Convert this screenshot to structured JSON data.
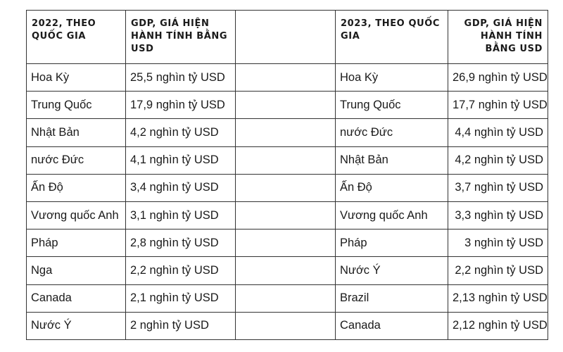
{
  "headers": {
    "col_2022_country": "2022, THEO QUỐC GIA",
    "col_2022_gdp": "GDP, GIÁ HIỆN HÀNH TÍNH BẰNG USD",
    "col_2023_country": "2023, THEO QUỐC GIA",
    "col_2023_gdp": "GDP, GIÁ HIỆN HÀNH TÍNH BẰNG USD"
  },
  "rows": [
    {
      "c2022": "Hoa Kỳ",
      "g2022": "25,5 nghìn tỷ USD",
      "c2023": "Hoa Kỳ",
      "g2023": "26,9 nghìn tỷ USD"
    },
    {
      "c2022": "Trung Quốc",
      "g2022": "17,9 nghìn tỷ USD",
      "c2023": "Trung Quốc",
      "g2023": "17,7 nghìn tỷ USD"
    },
    {
      "c2022": "Nhật Bản",
      "g2022": "4,2 nghìn tỷ USD",
      "c2023": "nước Đức",
      "g2023": "4,4 nghìn tỷ USD"
    },
    {
      "c2022": "nước Đức",
      "g2022": "4,1 nghìn tỷ USD",
      "c2023": "Nhật Bản",
      "g2023": "4,2 nghìn tỷ USD"
    },
    {
      "c2022": "Ấn Độ",
      "g2022": "3,4 nghìn tỷ USD",
      "c2023": "Ấn Độ",
      "g2023": "3,7 nghìn tỷ USD"
    },
    {
      "c2022": "Vương quốc Anh",
      "g2022": "3,1 nghìn tỷ USD",
      "c2023": "Vương quốc Anh",
      "g2023": "3,3 nghìn tỷ USD"
    },
    {
      "c2022": "Pháp",
      "g2022": "2,8 nghìn tỷ USD",
      "c2023": "Pháp",
      "g2023": "3 nghìn tỷ USD"
    },
    {
      "c2022": "Nga",
      "g2022": "2,2 nghìn tỷ USD",
      "c2023": "Nước Ý",
      "g2023": "2,2 nghìn tỷ USD"
    },
    {
      "c2022": "Canada",
      "g2022": "2,1 nghìn tỷ USD",
      "c2023": "Brazil",
      "g2023": "2,13 nghìn tỷ USD"
    },
    {
      "c2022": "Nước Ý",
      "g2022": "2 nghìn tỷ USD",
      "c2023": "Canada",
      "g2023": "2,12 nghìn tỷ USD"
    }
  ]
}
